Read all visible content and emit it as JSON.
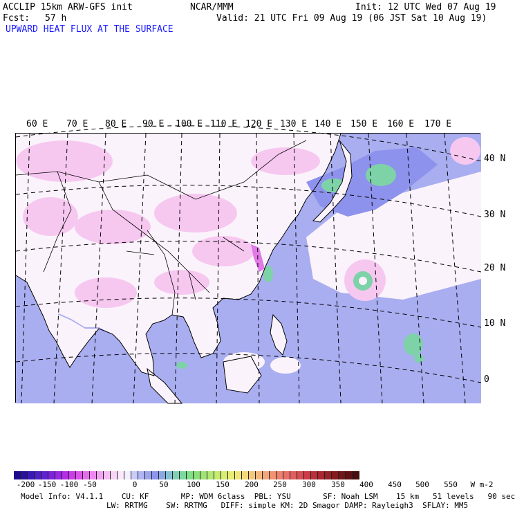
{
  "header": {
    "model": "ACCLIP 15km ARW-GFS init",
    "center": "NCAR/MMM",
    "init": "Init: 12 UTC Wed 07 Aug 19",
    "fcst_label": "Fcst:",
    "fcst_value": "57 h",
    "valid": "Valid: 21 UTC Fri 09 Aug 19 (06 JST Sat 10 Aug 19)",
    "field_title": "UPWARD HEAT FLUX AT THE SURFACE"
  },
  "map": {
    "lon_labels": [
      "60 E",
      "70 E",
      "80 E",
      "90 E",
      "100 E",
      "110 E",
      "120 E",
      "130 E",
      "140 E",
      "150 E",
      "160 E",
      "170 E"
    ],
    "lat_labels": [
      "40 N",
      "30 N",
      "20 N",
      "10 N",
      "0"
    ],
    "colors": {
      "ocean": "#a9aef0",
      "land_white": "#fbf3fb",
      "land_pink": "#f6c8f0",
      "magenta": "#e07ae6",
      "green": "#7ed2a8",
      "blue_mid": "#8d92ec",
      "border": "#000000"
    }
  },
  "colorbar": {
    "colors": [
      "#1c0a8c",
      "#2a10a0",
      "#3a18b4",
      "#4c20c4",
      "#6022d0",
      "#7a24dc",
      "#9828e2",
      "#b42ee6",
      "#cc3ce8",
      "#dc54ea",
      "#e66cee",
      "#ec88f0",
      "#f2a2f2",
      "#f6bcf4",
      "#f9d4f7",
      "#fce8fb",
      "#f4f0ff",
      "#c8ccf8",
      "#b0b6f4",
      "#9ca4f0",
      "#8c96ec",
      "#8aa8e2",
      "#86c0d2",
      "#80d0b8",
      "#7cd89e",
      "#80e088",
      "#8ce07a",
      "#a0e476",
      "#b4e874",
      "#c8ec72",
      "#d8ee72",
      "#e8ee74",
      "#f0e678",
      "#f4d87a",
      "#f4c87c",
      "#f4b87e",
      "#f2a67a",
      "#f09474",
      "#ec826e",
      "#e87068",
      "#e25e5e",
      "#d84c52",
      "#cc3c46",
      "#bc303a",
      "#aa2630",
      "#982026",
      "#861a1e",
      "#721418",
      "#5e1012",
      "#4a0c0c"
    ],
    "labels": [
      "-200",
      "-150",
      "-100",
      "-50",
      "0",
      "50",
      "100",
      "150",
      "200",
      "250",
      "300",
      "350",
      "400",
      "450",
      "500",
      "550"
    ],
    "unit": "W m-2"
  },
  "model_info": {
    "line1": "Model Info: V4.1.1    CU: KF       MP: WDM 6class  PBL: YSU       SF: Noah LSM    15 km   51 levels   90 sec",
    "line2": "LW: RRTMG    SW: RRTMG   DIFF: simple KM: 2D Smagor DAMP: Rayleigh3  SFLAY: MM5"
  }
}
